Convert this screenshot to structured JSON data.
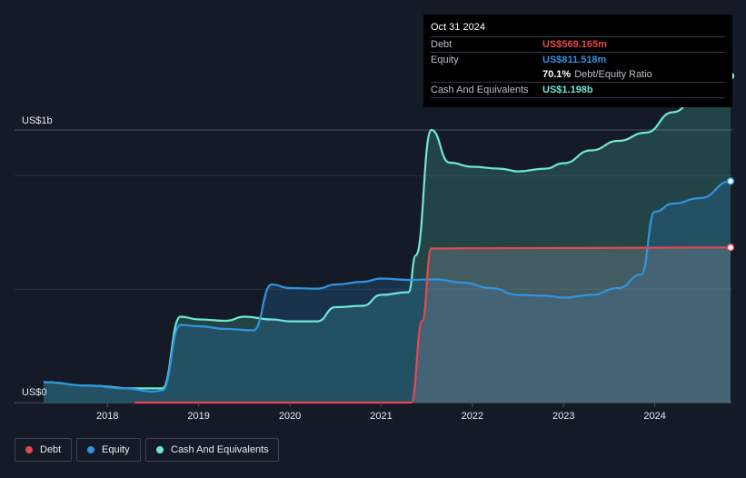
{
  "tooltip": {
    "date": "Oct 31 2024",
    "debt_label": "Debt",
    "debt_value": "US$569.165m",
    "equity_label": "Equity",
    "equity_value": "US$811.518m",
    "ratio_value": "70.1%",
    "ratio_label": "Debt/Equity Ratio",
    "cash_label": "Cash And Equivalents",
    "cash_value": "US$1.198b"
  },
  "legend": [
    {
      "label": "Debt",
      "color": "#e5484d"
    },
    {
      "label": "Equity",
      "color": "#2f94e0"
    },
    {
      "label": "Cash And Equivalents",
      "color": "#6ee7d3"
    }
  ],
  "colors": {
    "debt": "#e5484d",
    "equity": "#2f94e0",
    "cash": "#6ee7d3",
    "background": "#151b26"
  },
  "chart_data": {
    "type": "area",
    "y_top_label": "US$1b",
    "y_zero_label": "US$0",
    "ylim": [
      0,
      1.2
    ],
    "xlim": [
      2017.3,
      2024.83
    ],
    "grid": true,
    "x_ticks": [
      2018,
      2019,
      2020,
      2021,
      2022,
      2023,
      2024
    ],
    "series": [
      {
        "name": "Cash And Equivalents",
        "x": [
          2017.3,
          2017.8,
          2018.3,
          2018.6,
          2018.8,
          2019.0,
          2019.3,
          2019.5,
          2019.8,
          2020.0,
          2020.3,
          2020.5,
          2020.8,
          2021.0,
          2021.3,
          2021.38,
          2021.55,
          2021.75,
          2022.0,
          2022.3,
          2022.5,
          2022.8,
          2023.0,
          2023.3,
          2023.6,
          2023.9,
          2024.2,
          2024.5,
          2024.83
        ],
        "y": [
          0.075,
          0.062,
          0.052,
          0.052,
          0.315,
          0.305,
          0.3,
          0.315,
          0.305,
          0.298,
          0.298,
          0.35,
          0.355,
          0.395,
          0.405,
          0.54,
          1.0,
          0.88,
          0.865,
          0.858,
          0.848,
          0.858,
          0.878,
          0.925,
          0.96,
          0.99,
          1.065,
          1.14,
          1.198
        ]
      },
      {
        "name": "Equity",
        "x": [
          2017.3,
          2017.8,
          2018.2,
          2018.5,
          2018.6,
          2018.8,
          2019.0,
          2019.3,
          2019.6,
          2019.8,
          2020.0,
          2020.3,
          2020.5,
          2020.8,
          2021.0,
          2021.3,
          2021.6,
          2021.9,
          2022.2,
          2022.5,
          2022.8,
          2023.0,
          2023.3,
          2023.6,
          2023.85,
          2024.0,
          2024.2,
          2024.5,
          2024.83
        ],
        "y": [
          0.075,
          0.062,
          0.052,
          0.04,
          0.045,
          0.285,
          0.28,
          0.27,
          0.265,
          0.433,
          0.42,
          0.418,
          0.433,
          0.443,
          0.455,
          0.45,
          0.452,
          0.44,
          0.42,
          0.395,
          0.392,
          0.385,
          0.395,
          0.42,
          0.47,
          0.7,
          0.73,
          0.75,
          0.812
        ]
      },
      {
        "name": "Debt",
        "x": [
          2018.3,
          2021.3,
          2021.33,
          2021.45,
          2021.55,
          2022.0,
          2023.0,
          2024.0,
          2024.83
        ],
        "y": [
          0.0,
          0.0,
          0.0,
          0.3,
          0.565,
          0.566,
          0.567,
          0.568,
          0.569
        ]
      }
    ]
  }
}
